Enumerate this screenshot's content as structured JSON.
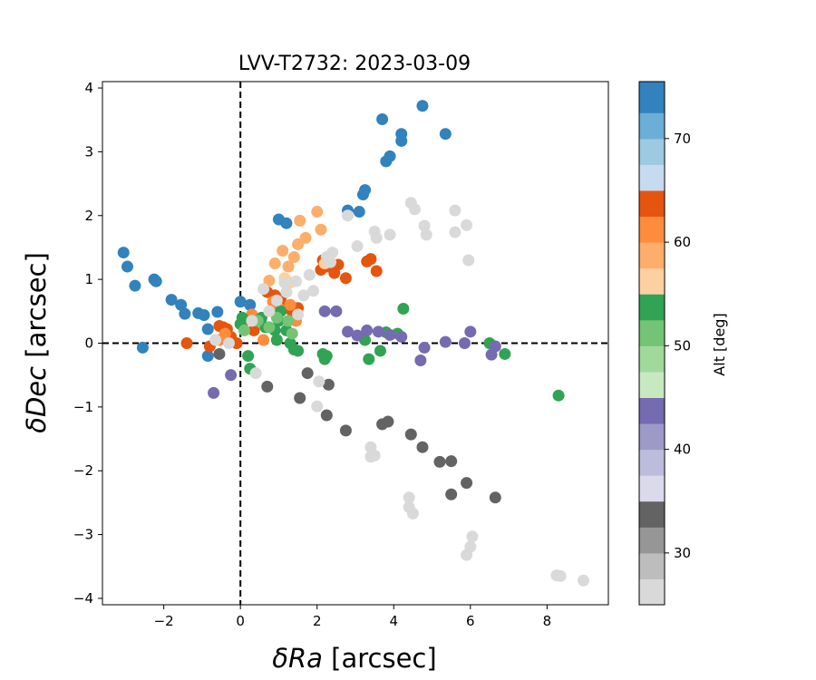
{
  "chart_data": {
    "type": "scatter",
    "title": "LVV-T2732: 2023-03-09",
    "xlabel_symbol": "δRa",
    "xlabel_unit": " [arcsec]",
    "ylabel_symbol": "δDec",
    "ylabel_unit": " [arcsec]",
    "colorbar_label": "Alt [deg]",
    "xlim": [
      -3.6,
      9.6
    ],
    "ylim": [
      -4.1,
      4.1
    ],
    "xticks": [
      -2,
      0,
      2,
      4,
      6,
      8
    ],
    "yticks": [
      -4,
      -3,
      -2,
      -1,
      0,
      1,
      2,
      3,
      4
    ],
    "reference_lines": {
      "x": 0,
      "y": 0,
      "style": "dashed"
    },
    "grid": false,
    "colorbar": {
      "range": [
        25,
        75.5
      ],
      "ticks": [
        30,
        40,
        50,
        60,
        70
      ],
      "bins": [
        {
          "lo": 25.0,
          "hi": 27.5,
          "color": "#d9d9d9"
        },
        {
          "lo": 27.5,
          "hi": 30.0,
          "color": "#bdbdbd"
        },
        {
          "lo": 30.0,
          "hi": 32.5,
          "color": "#969696"
        },
        {
          "lo": 32.5,
          "hi": 35.0,
          "color": "#636363"
        },
        {
          "lo": 35.0,
          "hi": 37.5,
          "color": "#dadaeb"
        },
        {
          "lo": 37.5,
          "hi": 40.0,
          "color": "#bcbddc"
        },
        {
          "lo": 40.0,
          "hi": 42.5,
          "color": "#9e9ac8"
        },
        {
          "lo": 42.5,
          "hi": 45.0,
          "color": "#756bb1"
        },
        {
          "lo": 45.0,
          "hi": 47.5,
          "color": "#c7e9c0"
        },
        {
          "lo": 47.5,
          "hi": 50.0,
          "color": "#a1d99b"
        },
        {
          "lo": 50.0,
          "hi": 52.5,
          "color": "#74c476"
        },
        {
          "lo": 52.5,
          "hi": 55.0,
          "color": "#31a354"
        },
        {
          "lo": 55.0,
          "hi": 57.5,
          "color": "#fdd0a2"
        },
        {
          "lo": 57.5,
          "hi": 60.0,
          "color": "#fdae6b"
        },
        {
          "lo": 60.0,
          "hi": 62.5,
          "color": "#fd8d3c"
        },
        {
          "lo": 62.5,
          "hi": 65.0,
          "color": "#e6550d"
        },
        {
          "lo": 65.0,
          "hi": 67.5,
          "color": "#c6dbef"
        },
        {
          "lo": 67.5,
          "hi": 70.0,
          "color": "#9ecae1"
        },
        {
          "lo": 70.0,
          "hi": 72.5,
          "color": "#6baed6"
        },
        {
          "lo": 72.5,
          "hi": 75.5,
          "color": "#3182bd"
        }
      ]
    },
    "series": [
      {
        "color": "#3182bd",
        "points": [
          [
            -3.05,
            1.42
          ],
          [
            -2.95,
            1.2
          ],
          [
            -2.75,
            0.9
          ],
          [
            -2.55,
            -0.07
          ],
          [
            -2.25,
            1.0
          ],
          [
            -2.2,
            0.97
          ],
          [
            -1.8,
            0.68
          ],
          [
            -1.55,
            0.6
          ],
          [
            -1.45,
            0.46
          ],
          [
            -1.1,
            0.47
          ],
          [
            -0.95,
            0.44
          ],
          [
            -0.85,
            0.22
          ],
          [
            -0.85,
            -0.2
          ],
          [
            -0.6,
            0.49
          ],
          [
            0.0,
            0.65
          ],
          [
            0.25,
            0.6
          ],
          [
            1.0,
            1.94
          ],
          [
            1.2,
            1.88
          ],
          [
            2.8,
            2.08
          ],
          [
            3.1,
            2.06
          ],
          [
            3.2,
            2.33
          ],
          [
            3.25,
            2.4
          ],
          [
            3.7,
            3.51
          ],
          [
            3.8,
            2.85
          ],
          [
            3.9,
            2.93
          ],
          [
            4.2,
            3.28
          ],
          [
            4.2,
            3.17
          ],
          [
            4.75,
            3.72
          ],
          [
            5.35,
            3.28
          ]
        ]
      },
      {
        "color": "#e6550d",
        "points": [
          [
            -1.4,
            0.0
          ],
          [
            -0.8,
            -0.05
          ],
          [
            -0.55,
            0.27
          ],
          [
            -0.45,
            0.25
          ],
          [
            -0.35,
            0.22
          ],
          [
            -0.25,
            0.1
          ],
          [
            -0.1,
            0.0
          ],
          [
            0.1,
            0.35
          ],
          [
            0.35,
            0.2
          ],
          [
            0.7,
            0.8
          ],
          [
            0.9,
            0.75
          ],
          [
            1.05,
            0.7
          ],
          [
            1.2,
            0.55
          ],
          [
            1.35,
            0.5
          ],
          [
            1.5,
            0.55
          ],
          [
            2.1,
            1.15
          ],
          [
            2.15,
            1.3
          ],
          [
            2.25,
            1.2
          ],
          [
            2.45,
            1.1
          ],
          [
            2.55,
            1.23
          ],
          [
            2.75,
            1.02
          ],
          [
            3.3,
            1.28
          ],
          [
            3.4,
            1.32
          ],
          [
            3.55,
            1.13
          ]
        ]
      },
      {
        "color": "#fd8d3c",
        "points": [
          [
            -0.55,
            0.05
          ],
          [
            -0.4,
            0.15
          ],
          [
            0.3,
            0.45
          ],
          [
            0.6,
            0.05
          ],
          [
            0.85,
            0.65
          ],
          [
            1.0,
            0.55
          ],
          [
            1.3,
            0.6
          ],
          [
            1.45,
            0.35
          ]
        ]
      },
      {
        "color": "#fdae6b",
        "points": [
          [
            0.75,
            0.98
          ],
          [
            0.9,
            1.25
          ],
          [
            1.1,
            1.45
          ],
          [
            1.25,
            1.2
          ],
          [
            1.4,
            1.35
          ],
          [
            1.5,
            1.55
          ],
          [
            1.55,
            1.92
          ],
          [
            1.7,
            1.65
          ],
          [
            2.0,
            2.06
          ],
          [
            2.1,
            1.78
          ],
          [
            2.3,
            1.3
          ]
        ]
      },
      {
        "color": "#fdd0a2",
        "points": [
          [
            1.15,
            1.02
          ],
          [
            1.3,
            0.95
          ],
          [
            2.2,
            1.25
          ]
        ]
      },
      {
        "color": "#31a354",
        "points": [
          [
            0.0,
            0.3
          ],
          [
            0.05,
            0.4
          ],
          [
            0.2,
            -0.2
          ],
          [
            0.25,
            -0.4
          ],
          [
            0.55,
            0.4
          ],
          [
            0.65,
            0.25
          ],
          [
            0.9,
            0.2
          ],
          [
            0.95,
            0.05
          ],
          [
            1.0,
            0.35
          ],
          [
            1.05,
            0.5
          ],
          [
            1.2,
            0.2
          ],
          [
            1.3,
            0.0
          ],
          [
            1.4,
            -0.1
          ],
          [
            1.5,
            -0.12
          ],
          [
            2.15,
            -0.17
          ],
          [
            2.2,
            -0.25
          ],
          [
            2.25,
            -0.2
          ],
          [
            3.25,
            0.05
          ],
          [
            3.35,
            -0.25
          ],
          [
            3.65,
            -0.12
          ],
          [
            3.8,
            0.17
          ],
          [
            4.1,
            0.15
          ],
          [
            4.25,
            0.54
          ],
          [
            6.5,
            0.0
          ],
          [
            6.9,
            -0.17
          ],
          [
            8.3,
            -0.82
          ]
        ]
      },
      {
        "color": "#74c476",
        "points": [
          [
            0.1,
            0.2
          ],
          [
            0.45,
            0.35
          ],
          [
            0.75,
            0.25
          ],
          [
            0.95,
            0.4
          ],
          [
            1.25,
            0.35
          ],
          [
            1.35,
            0.15
          ]
        ]
      },
      {
        "color": "#756bb1",
        "points": [
          [
            -0.7,
            -0.78
          ],
          [
            -0.25,
            -0.5
          ],
          [
            2.2,
            0.5
          ],
          [
            2.5,
            0.5
          ],
          [
            2.8,
            0.18
          ],
          [
            3.05,
            0.12
          ],
          [
            3.3,
            0.2
          ],
          [
            3.6,
            0.18
          ],
          [
            3.9,
            0.13
          ],
          [
            4.2,
            0.1
          ],
          [
            4.7,
            -0.27
          ],
          [
            4.8,
            -0.07
          ],
          [
            5.35,
            0.02
          ],
          [
            5.85,
            0.0
          ],
          [
            6.0,
            0.18
          ],
          [
            6.55,
            -0.18
          ],
          [
            6.65,
            -0.05
          ]
        ]
      },
      {
        "color": "#636363",
        "points": [
          [
            -0.55,
            -0.17
          ],
          [
            0.7,
            -0.68
          ],
          [
            1.55,
            -0.86
          ],
          [
            1.75,
            -0.47
          ],
          [
            2.25,
            -1.13
          ],
          [
            2.3,
            -0.65
          ],
          [
            2.75,
            -1.37
          ],
          [
            3.7,
            -1.27
          ],
          [
            3.85,
            -1.23
          ],
          [
            4.45,
            -1.43
          ],
          [
            4.75,
            -1.63
          ],
          [
            5.2,
            -1.86
          ],
          [
            5.5,
            -1.85
          ],
          [
            5.5,
            -2.37
          ],
          [
            5.9,
            -2.19
          ],
          [
            6.65,
            -2.42
          ]
        ]
      },
      {
        "color": "#d9d9d9",
        "points": [
          [
            -0.65,
            0.05
          ],
          [
            -0.3,
            0.0
          ],
          [
            0.3,
            0.35
          ],
          [
            0.4,
            -0.47
          ],
          [
            0.6,
            0.85
          ],
          [
            0.75,
            0.5
          ],
          [
            0.95,
            0.67
          ],
          [
            1.15,
            0.95
          ],
          [
            1.2,
            0.8
          ],
          [
            1.45,
            0.97
          ],
          [
            1.5,
            0.45
          ],
          [
            1.65,
            0.75
          ],
          [
            1.8,
            1.07
          ],
          [
            1.9,
            0.82
          ],
          [
            2.0,
            -0.99
          ],
          [
            2.05,
            -0.6
          ],
          [
            2.25,
            1.35
          ],
          [
            2.35,
            1.27
          ],
          [
            2.4,
            1.42
          ],
          [
            2.8,
            2.0
          ],
          [
            3.05,
            1.52
          ],
          [
            3.4,
            -1.63
          ],
          [
            3.4,
            -1.78
          ],
          [
            3.5,
            -1.76
          ],
          [
            3.5,
            1.75
          ],
          [
            3.55,
            1.65
          ],
          [
            3.9,
            1.7
          ],
          [
            4.4,
            -2.42
          ],
          [
            4.4,
            -2.57
          ],
          [
            4.45,
            2.2
          ],
          [
            4.55,
            2.1
          ],
          [
            4.5,
            -2.67
          ],
          [
            4.8,
            1.84
          ],
          [
            4.85,
            1.7
          ],
          [
            5.6,
            2.08
          ],
          [
            5.6,
            1.74
          ],
          [
            5.9,
            1.85
          ],
          [
            5.95,
            1.3
          ],
          [
            5.9,
            -3.32
          ],
          [
            6.0,
            -3.19
          ],
          [
            6.05,
            -3.03
          ],
          [
            8.25,
            -3.64
          ],
          [
            8.35,
            -3.65
          ],
          [
            8.95,
            -3.72
          ]
        ]
      }
    ]
  }
}
